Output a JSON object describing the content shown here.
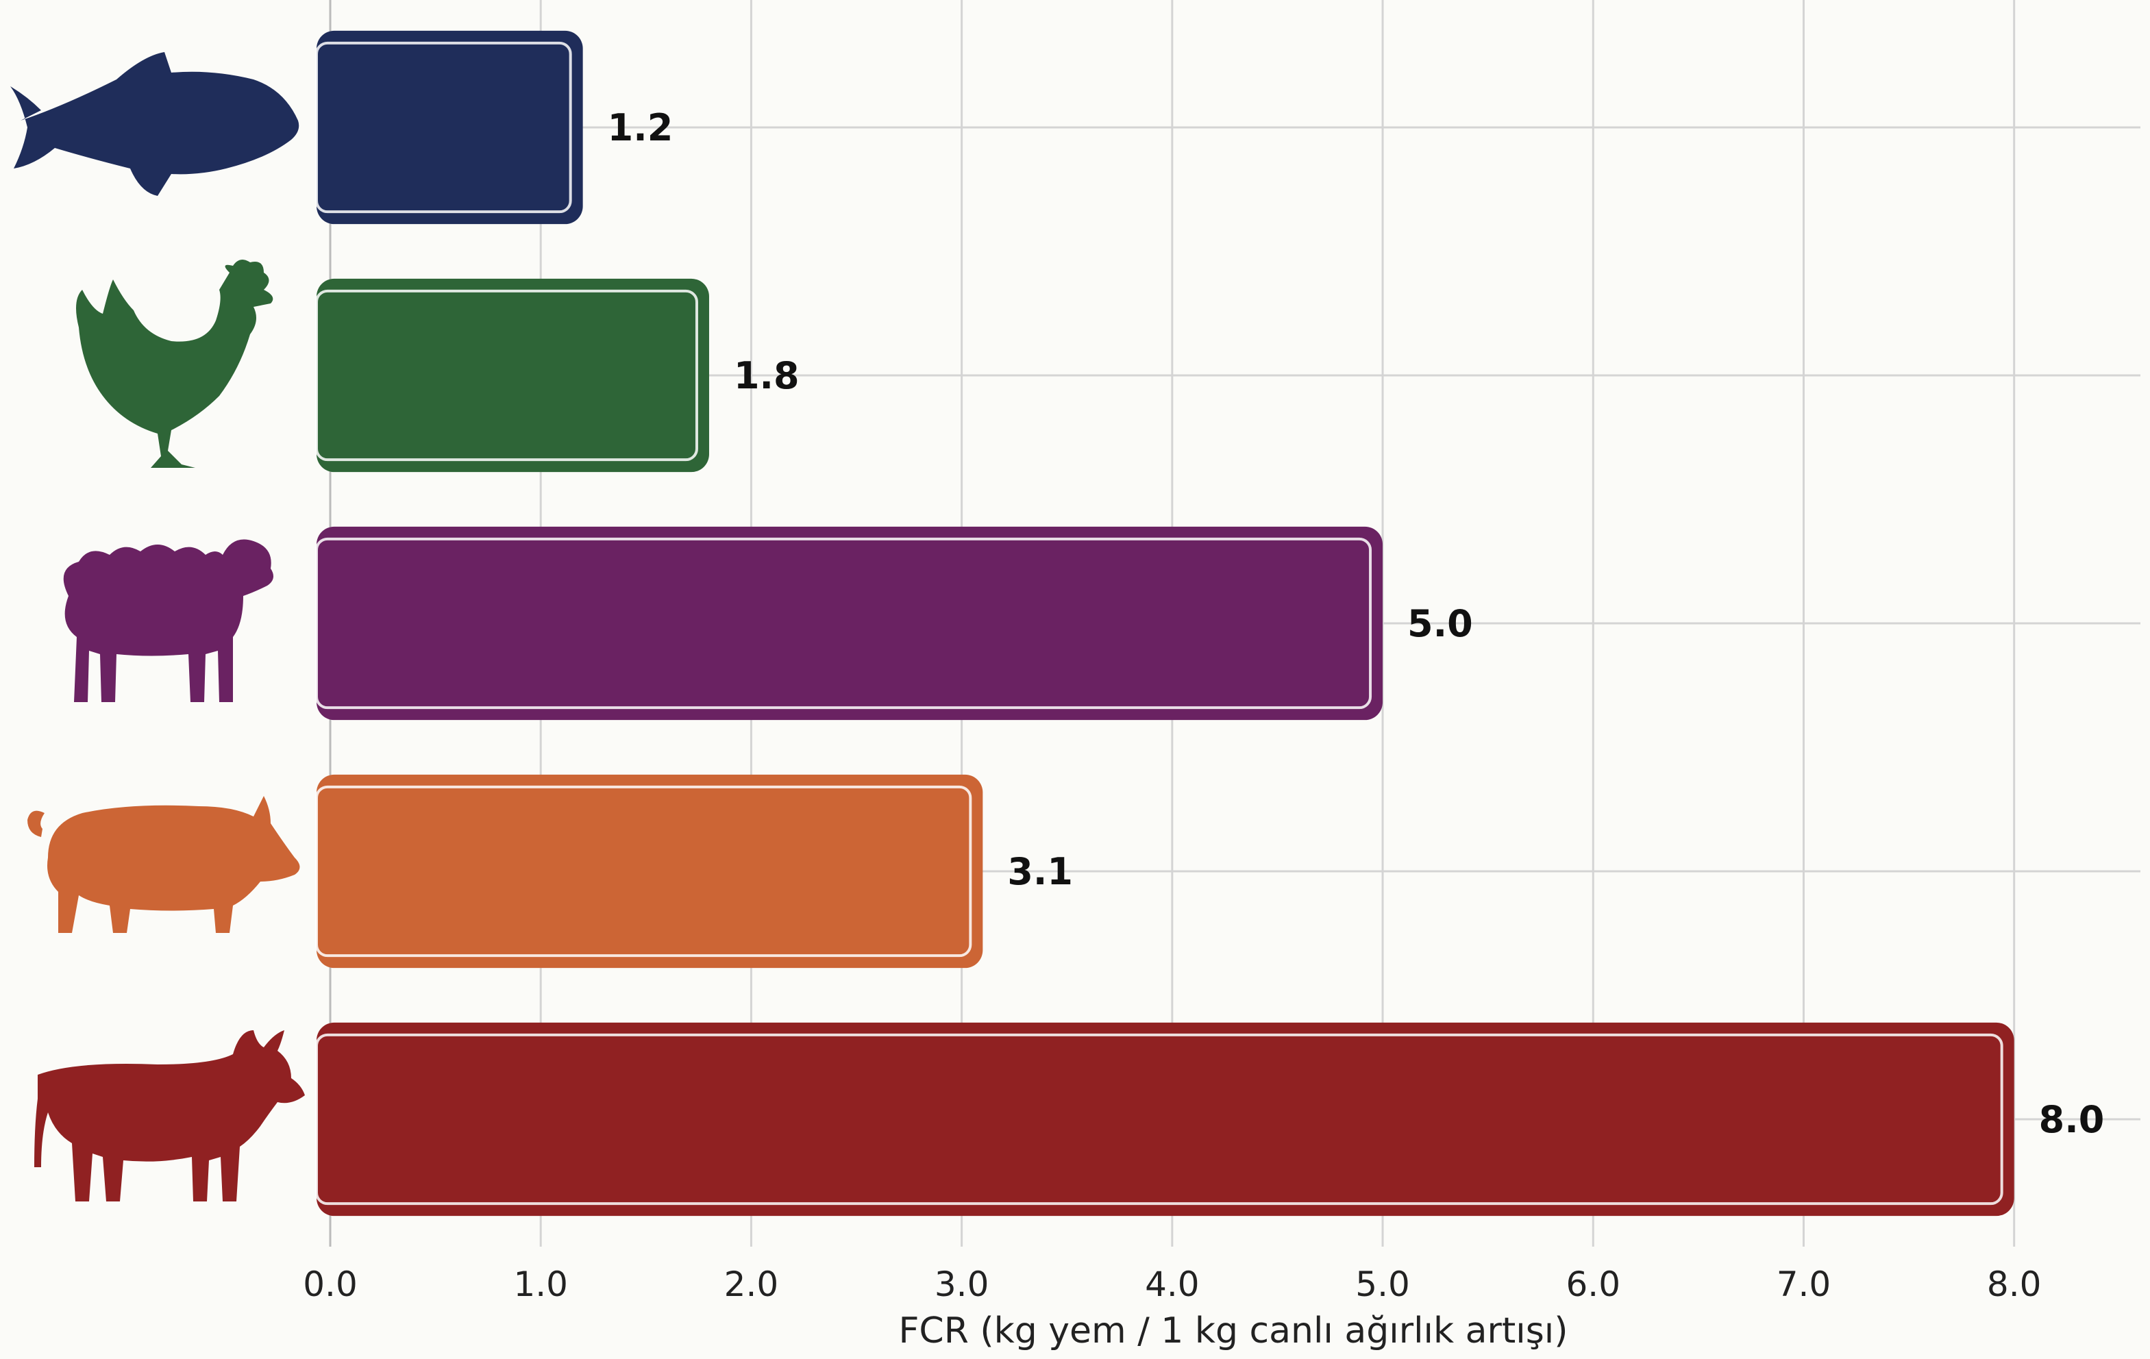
{
  "chart_data": {
    "type": "bar",
    "orientation": "horizontal",
    "categories": [
      "fish",
      "chicken",
      "sheep",
      "pig",
      "cattle"
    ],
    "category_icons": [
      "fish-icon",
      "chicken-icon",
      "sheep-icon",
      "pig-icon",
      "cow-icon"
    ],
    "values": [
      1.2,
      1.8,
      5.0,
      3.1,
      8.0
    ],
    "value_labels": [
      "1.2",
      "1.8",
      "5.0",
      "3.1",
      "8.0"
    ],
    "colors": [
      "#1f2d5a",
      "#2e6537",
      "#6a2262",
      "#cc6535",
      "#902122"
    ],
    "xlabel": "FCR (kg yem / 1 kg canlı ağırlık artışı)",
    "xlim": [
      0,
      8.6
    ],
    "xticks": [
      0,
      1,
      2,
      3,
      4,
      5,
      6,
      7,
      8
    ],
    "xtick_labels": [
      "0.0",
      "1.0",
      "2.0",
      "3.0",
      "4.0",
      "5.0",
      "6.0",
      "7.0",
      "8.0"
    ],
    "grid": true,
    "legend": "none"
  }
}
